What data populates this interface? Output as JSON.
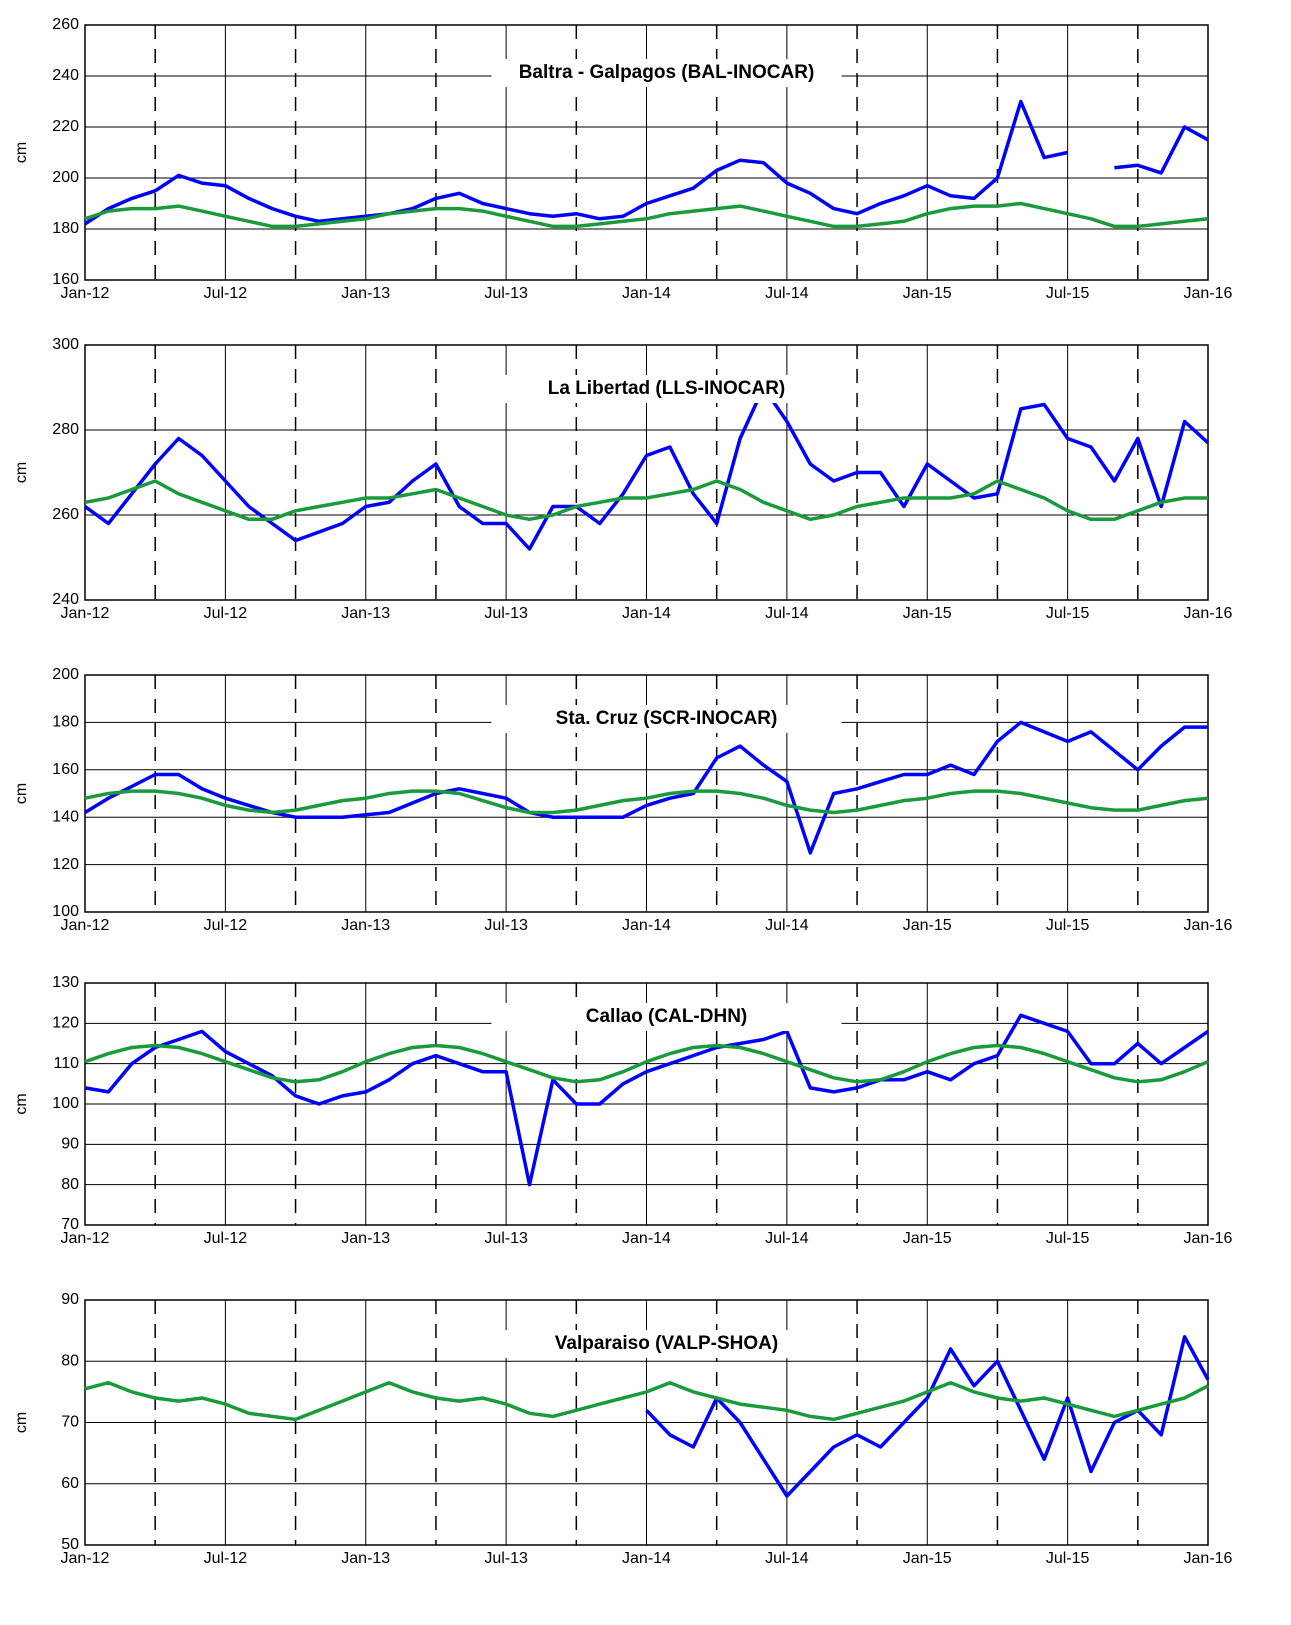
{
  "chart_data": [
    {
      "type": "line",
      "title": "Baltra - Galpagos (BAL-INOCAR)",
      "y_label": "cm",
      "x": [
        "Jan-12",
        "Feb-12",
        "Mar-12",
        "Apr-12",
        "May-12",
        "Jun-12",
        "Jul-12",
        "Aug-12",
        "Sep-12",
        "Oct-12",
        "Nov-12",
        "Dec-12",
        "Jan-13",
        "Feb-13",
        "Mar-13",
        "Apr-13",
        "May-13",
        "Jun-13",
        "Jul-13",
        "Aug-13",
        "Sep-13",
        "Oct-13",
        "Nov-13",
        "Dec-13",
        "Jan-14",
        "Feb-14",
        "Mar-14",
        "Apr-14",
        "May-14",
        "Jun-14",
        "Jul-14",
        "Aug-14",
        "Sep-14",
        "Oct-14",
        "Nov-14",
        "Dec-14",
        "Jan-15",
        "Feb-15",
        "Mar-15",
        "Apr-15",
        "May-15",
        "Jun-15",
        "Jul-15",
        "Aug-15",
        "Sep-15",
        "Oct-15",
        "Nov-15",
        "Dec-15",
        "Jan-16"
      ],
      "xticks": [
        "Jan-12",
        "Jul-12",
        "Jan-13",
        "Jul-13",
        "Jan-14",
        "Jul-14",
        "Jan-15",
        "Jul-15",
        "Jan-16"
      ],
      "ylim": [
        160,
        260
      ],
      "yticks": [
        160,
        180,
        200,
        220,
        240,
        260
      ],
      "grid": true,
      "series": [
        {
          "color": "#0000ff",
          "values": [
            182,
            188,
            192,
            195,
            201,
            198,
            197,
            192,
            188,
            185,
            183,
            184,
            185,
            186,
            188,
            192,
            194,
            190,
            188,
            186,
            185,
            186,
            184,
            185,
            190,
            193,
            196,
            203,
            207,
            206,
            198,
            194,
            188,
            186,
            190,
            193,
            197,
            193,
            192,
            200,
            230,
            208,
            210,
            null,
            204,
            205,
            202,
            220,
            215
          ]
        },
        {
          "color": "#1a9a3a",
          "values": [
            184,
            187,
            188,
            188,
            189,
            187,
            185,
            183,
            181,
            181,
            182,
            183,
            184,
            186,
            187,
            188,
            188,
            187,
            185,
            183,
            181,
            181,
            182,
            183,
            184,
            186,
            187,
            188,
            189,
            187,
            185,
            183,
            181,
            181,
            182,
            183,
            186,
            188,
            189,
            189,
            190,
            188,
            186,
            184,
            181,
            181,
            182,
            183,
            184
          ]
        }
      ]
    },
    {
      "type": "line",
      "title": "La Libertad (LLS-INOCAR)",
      "y_label": "cm",
      "x": [
        "Jan-12",
        "Feb-12",
        "Mar-12",
        "Apr-12",
        "May-12",
        "Jun-12",
        "Jul-12",
        "Aug-12",
        "Sep-12",
        "Oct-12",
        "Nov-12",
        "Dec-12",
        "Jan-13",
        "Feb-13",
        "Mar-13",
        "Apr-13",
        "May-13",
        "Jun-13",
        "Jul-13",
        "Aug-13",
        "Sep-13",
        "Oct-13",
        "Nov-13",
        "Dec-13",
        "Jan-14",
        "Feb-14",
        "Mar-14",
        "Apr-14",
        "May-14",
        "Jun-14",
        "Jul-14",
        "Aug-14",
        "Sep-14",
        "Oct-14",
        "Nov-14",
        "Dec-14",
        "Jan-15",
        "Feb-15",
        "Mar-15",
        "Apr-15",
        "May-15",
        "Jun-15",
        "Jul-15",
        "Aug-15",
        "Sep-15",
        "Oct-15",
        "Nov-15",
        "Dec-15",
        "Jan-16"
      ],
      "xticks": [
        "Jan-12",
        "Jul-12",
        "Jan-13",
        "Jul-13",
        "Jan-14",
        "Jul-14",
        "Jan-15",
        "Jul-15",
        "Jan-16"
      ],
      "ylim": [
        240,
        300
      ],
      "yticks": [
        240,
        260,
        280,
        300
      ],
      "grid": true,
      "series": [
        {
          "color": "#0000ff",
          "values": [
            262,
            258,
            265,
            272,
            278,
            274,
            268,
            262,
            258,
            254,
            256,
            258,
            262,
            263,
            268,
            272,
            262,
            258,
            258,
            252,
            262,
            262,
            258,
            265,
            274,
            276,
            265,
            258,
            278,
            290,
            282,
            272,
            268,
            270,
            270,
            262,
            272,
            268,
            264,
            265,
            285,
            286,
            278,
            276,
            268,
            278,
            262,
            282,
            277
          ]
        },
        {
          "color": "#1a9a3a",
          "values": [
            263,
            264,
            266,
            268,
            265,
            263,
            261,
            259,
            259,
            261,
            262,
            263,
            264,
            264,
            265,
            266,
            264,
            262,
            260,
            259,
            260,
            262,
            263,
            264,
            264,
            265,
            266,
            268,
            266,
            263,
            261,
            259,
            260,
            262,
            263,
            264,
            264,
            264,
            265,
            268,
            266,
            264,
            261,
            259,
            259,
            261,
            263,
            264,
            264
          ]
        }
      ]
    },
    {
      "type": "line",
      "title": "Sta. Cruz (SCR-INOCAR)",
      "y_label": "cm",
      "x": [
        "Jan-12",
        "Feb-12",
        "Mar-12",
        "Apr-12",
        "May-12",
        "Jun-12",
        "Jul-12",
        "Aug-12",
        "Sep-12",
        "Oct-12",
        "Nov-12",
        "Dec-12",
        "Jan-13",
        "Feb-13",
        "Mar-13",
        "Apr-13",
        "May-13",
        "Jun-13",
        "Jul-13",
        "Aug-13",
        "Sep-13",
        "Oct-13",
        "Nov-13",
        "Dec-13",
        "Jan-14",
        "Feb-14",
        "Mar-14",
        "Apr-14",
        "May-14",
        "Jun-14",
        "Jul-14",
        "Aug-14",
        "Sep-14",
        "Oct-14",
        "Nov-14",
        "Dec-14",
        "Jan-15",
        "Feb-15",
        "Mar-15",
        "Apr-15",
        "May-15",
        "Jun-15",
        "Jul-15",
        "Aug-15",
        "Sep-15",
        "Oct-15",
        "Nov-15",
        "Dec-15",
        "Jan-16"
      ],
      "xticks": [
        "Jan-12",
        "Jul-12",
        "Jan-13",
        "Jul-13",
        "Jan-14",
        "Jul-14",
        "Jan-15",
        "Jul-15",
        "Jan-16"
      ],
      "ylim": [
        100,
        200
      ],
      "yticks": [
        100,
        120,
        140,
        160,
        180,
        200
      ],
      "grid": true,
      "series": [
        {
          "color": "#0000ff",
          "values": [
            142,
            148,
            153,
            158,
            158,
            152,
            148,
            145,
            142,
            140,
            140,
            140,
            141,
            142,
            146,
            150,
            152,
            150,
            148,
            142,
            140,
            140,
            140,
            140,
            145,
            148,
            150,
            165,
            170,
            162,
            155,
            125,
            150,
            152,
            155,
            158,
            158,
            162,
            158,
            172,
            180,
            176,
            172,
            176,
            168,
            160,
            170,
            178,
            178
          ]
        },
        {
          "color": "#1a9a3a",
          "values": [
            148,
            150,
            151,
            151,
            150,
            148,
            145,
            143,
            142,
            143,
            145,
            147,
            148,
            150,
            151,
            151,
            150,
            147,
            144,
            142,
            142,
            143,
            145,
            147,
            148,
            150,
            151,
            151,
            150,
            148,
            145,
            143,
            142,
            143,
            145,
            147,
            148,
            150,
            151,
            151,
            150,
            148,
            146,
            144,
            143,
            143,
            145,
            147,
            148
          ]
        }
      ]
    },
    {
      "type": "line",
      "title": "Callao (CAL-DHN)",
      "y_label": "cm",
      "x": [
        "Jan-12",
        "Feb-12",
        "Mar-12",
        "Apr-12",
        "May-12",
        "Jun-12",
        "Jul-12",
        "Aug-12",
        "Sep-12",
        "Oct-12",
        "Nov-12",
        "Dec-12",
        "Jan-13",
        "Feb-13",
        "Mar-13",
        "Apr-13",
        "May-13",
        "Jun-13",
        "Jul-13",
        "Aug-13",
        "Sep-13",
        "Oct-13",
        "Nov-13",
        "Dec-13",
        "Jan-14",
        "Feb-14",
        "Mar-14",
        "Apr-14",
        "May-14",
        "Jun-14",
        "Jul-14",
        "Aug-14",
        "Sep-14",
        "Oct-14",
        "Nov-14",
        "Dec-14",
        "Jan-15",
        "Feb-15",
        "Mar-15",
        "Apr-15",
        "May-15",
        "Jun-15",
        "Jul-15",
        "Aug-15",
        "Sep-15",
        "Oct-15",
        "Nov-15",
        "Dec-15",
        "Jan-16"
      ],
      "xticks": [
        "Jan-12",
        "Jul-12",
        "Jan-13",
        "Jul-13",
        "Jan-14",
        "Jul-14",
        "Jan-15",
        "Jul-15",
        "Jan-16"
      ],
      "ylim": [
        70,
        130
      ],
      "yticks": [
        70,
        80,
        90,
        100,
        110,
        120,
        130
      ],
      "grid": true,
      "series": [
        {
          "color": "#0000ff",
          "values": [
            104,
            103,
            110,
            114,
            116,
            118,
            113,
            110,
            107,
            102,
            100,
            102,
            103,
            106,
            110,
            112,
            110,
            108,
            108,
            80,
            106,
            100,
            100,
            105,
            108,
            110,
            112,
            114,
            115,
            116,
            118,
            104,
            103,
            104,
            106,
            106,
            108,
            106,
            110,
            112,
            122,
            120,
            118,
            110,
            110,
            115,
            110,
            114,
            118
          ]
        },
        {
          "color": "#1a9a3a",
          "values": [
            110.5,
            112.5,
            114,
            114.5,
            114,
            112.5,
            110.5,
            108.5,
            106.5,
            105.5,
            106,
            108,
            110.5,
            112.5,
            114,
            114.5,
            114,
            112.5,
            110.5,
            108.5,
            106.5,
            105.5,
            106,
            108,
            110.5,
            112.5,
            114,
            114.5,
            114,
            112.5,
            110.5,
            108.5,
            106.5,
            105.5,
            106,
            108,
            110.5,
            112.5,
            114,
            114.5,
            114,
            112.5,
            110.5,
            108.5,
            106.5,
            105.5,
            106,
            108,
            110.5
          ]
        }
      ]
    },
    {
      "type": "line",
      "title": "Valparaiso (VALP-SHOA)",
      "y_label": "cm",
      "x": [
        "Jan-12",
        "Feb-12",
        "Mar-12",
        "Apr-12",
        "May-12",
        "Jun-12",
        "Jul-12",
        "Aug-12",
        "Sep-12",
        "Oct-12",
        "Nov-12",
        "Dec-12",
        "Jan-13",
        "Feb-13",
        "Mar-13",
        "Apr-13",
        "May-13",
        "Jun-13",
        "Jul-13",
        "Aug-13",
        "Sep-13",
        "Oct-13",
        "Nov-13",
        "Dec-13",
        "Jan-14",
        "Feb-14",
        "Mar-14",
        "Apr-14",
        "May-14",
        "Jun-14",
        "Jul-14",
        "Aug-14",
        "Sep-14",
        "Oct-14",
        "Nov-14",
        "Dec-14",
        "Jan-15",
        "Feb-15",
        "Mar-15",
        "Apr-15",
        "May-15",
        "Jun-15",
        "Jul-15",
        "Aug-15",
        "Sep-15",
        "Oct-15",
        "Nov-15",
        "Dec-15",
        "Jan-16"
      ],
      "xticks": [
        "Jan-12",
        "Jul-12",
        "Jan-13",
        "Jul-13",
        "Jan-14",
        "Jul-14",
        "Jan-15",
        "Jul-15",
        "Jan-16"
      ],
      "ylim": [
        50,
        90
      ],
      "yticks": [
        50,
        60,
        70,
        80,
        90
      ],
      "grid": true,
      "series": [
        {
          "color": "#0000ff",
          "values": [
            null,
            null,
            null,
            null,
            null,
            null,
            null,
            null,
            null,
            null,
            null,
            null,
            null,
            null,
            null,
            null,
            null,
            null,
            null,
            null,
            null,
            null,
            null,
            null,
            72,
            68,
            66,
            74,
            70,
            64,
            58,
            62,
            66,
            68,
            66,
            70,
            74,
            82,
            76,
            80,
            72,
            64,
            74,
            62,
            70,
            72,
            68,
            84,
            77
          ]
        },
        {
          "color": "#1a9a3a",
          "values": [
            75.5,
            76.5,
            75,
            74,
            73.5,
            74,
            73,
            71.5,
            71,
            70.5,
            72,
            73.5,
            75,
            76.5,
            75,
            74,
            73.5,
            74,
            73,
            71.5,
            71,
            72,
            73,
            74,
            75,
            76.5,
            75,
            74,
            73,
            72.5,
            72,
            71,
            70.5,
            71.5,
            72.5,
            73.5,
            75,
            76.5,
            75,
            74,
            73.5,
            74,
            73,
            72,
            71,
            72,
            73,
            74,
            76
          ]
        }
      ]
    }
  ]
}
